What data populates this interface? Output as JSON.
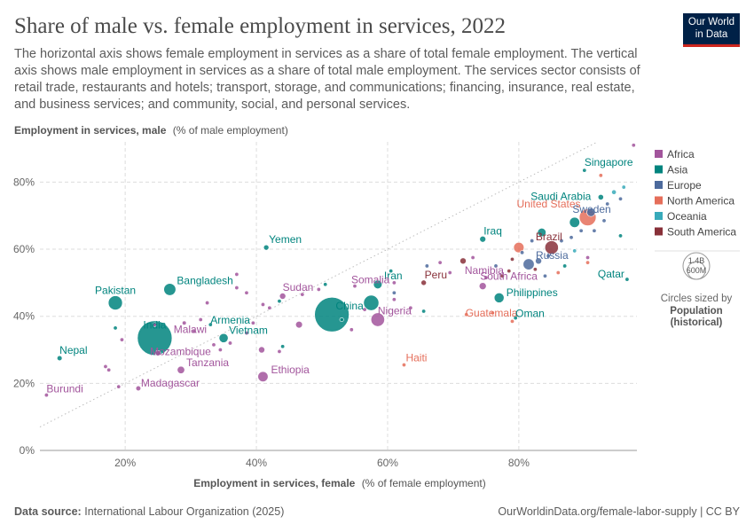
{
  "header": {
    "title": "Share of male vs. female employment in services, 2022",
    "subtitle": "The horizontal axis shows female employment in services as a share of total female employment. The vertical axis shows male employment in services as a share of total male employment. The services sector consists of retail trade, restaurants and hotels; transport, storage, and communications; financing, insurance, real estate, and business services; and community, social, and personal services.",
    "logo_line1": "Our World",
    "logo_line2": "in Data"
  },
  "footer": {
    "source_label": "Data source:",
    "source_text": "International Labour Organization (2025)",
    "url": "OurWorldinData.org/female-labor-supply | CC BY"
  },
  "colors": {
    "Africa": "#a2559c",
    "Asia": "#00847e",
    "Europe": "#4c6a9c",
    "North America": "#e56e5a",
    "Oceania": "#38aaba",
    "South America": "#883039"
  },
  "legend": {
    "size_top": "1.4B",
    "size_bottom": "600M",
    "size_caption": "Circles sized by",
    "size_var1": "Population",
    "size_var2": "(historical)"
  },
  "chart_data": {
    "type": "scatter",
    "title": "Share of male vs. female employment in services, 2022",
    "xlabel_bold": "Employment in services, female",
    "xlabel_rest": "(% of female employment)",
    "ylabel_bold": "Employment in services, male",
    "ylabel_rest": "(% of male employment)",
    "xlim": [
      7,
      98
    ],
    "ylim": [
      0,
      92
    ],
    "x_ticks": [
      20,
      40,
      60,
      80
    ],
    "x_tick_labels": [
      "20%",
      "40%",
      "60%",
      "80%"
    ],
    "y_ticks": [
      0,
      20,
      40,
      60,
      80
    ],
    "y_tick_labels": [
      "0%",
      "20%",
      "40%",
      "60%",
      "80%"
    ],
    "grid": true,
    "reference_line": "y = x",
    "legend_entries": [
      "Africa",
      "Asia",
      "Europe",
      "North America",
      "Oceania",
      "South America"
    ],
    "points": [
      {
        "x": 24.5,
        "y": 33.5,
        "pop": 1420,
        "region": "Asia",
        "label": "India"
      },
      {
        "x": 51.5,
        "y": 40.5,
        "pop": 1410,
        "region": "Asia",
        "label": "China"
      },
      {
        "x": 90.5,
        "y": 69.5,
        "pop": 333,
        "region": "North America",
        "label": "United States"
      },
      {
        "x": 57.5,
        "y": 44.0,
        "pop": 275,
        "region": "Asia",
        "label": ""
      },
      {
        "x": 18.5,
        "y": 44.0,
        "pop": 236,
        "region": "Asia",
        "label": "Pakistan"
      },
      {
        "x": 58.5,
        "y": 39.0,
        "pop": 218,
        "region": "Africa",
        "label": "Nigeria"
      },
      {
        "x": 85.0,
        "y": 60.5,
        "pop": 215,
        "region": "South America",
        "label": "Brazil"
      },
      {
        "x": 26.8,
        "y": 48.0,
        "pop": 171,
        "region": "Asia",
        "label": "Bangladesh"
      },
      {
        "x": 81.5,
        "y": 55.5,
        "pop": 144,
        "region": "Europe",
        "label": "Russia"
      },
      {
        "x": 80.0,
        "y": 60.5,
        "pop": 128,
        "region": "North America",
        "label": ""
      },
      {
        "x": 41.0,
        "y": 22.0,
        "pop": 123,
        "region": "Africa",
        "label": "Ethiopia"
      },
      {
        "x": 88.5,
        "y": 68.0,
        "pop": 124,
        "region": "Asia",
        "label": ""
      },
      {
        "x": 77.0,
        "y": 45.5,
        "pop": 115,
        "region": "Asia",
        "label": "Philippines"
      },
      {
        "x": 35.0,
        "y": 33.5,
        "pop": 98,
        "region": "Asia",
        "label": "Vietnam"
      },
      {
        "x": 58.5,
        "y": 49.5,
        "pop": 88,
        "region": "Asia",
        "label": "Iran"
      },
      {
        "x": 83.5,
        "y": 65.0,
        "pop": 85,
        "region": "Asia",
        "label": ""
      },
      {
        "x": 91.0,
        "y": 71.0,
        "pop": 84,
        "region": "Europe",
        "label": ""
      },
      {
        "x": 28.5,
        "y": 24.0,
        "pop": 65,
        "region": "Africa",
        "label": "Tanzania"
      },
      {
        "x": 74.5,
        "y": 49.0,
        "pop": 60,
        "region": "Africa",
        "label": "South Africa"
      },
      {
        "x": 46.5,
        "y": 37.5,
        "pop": 55,
        "region": "Africa",
        "label": ""
      },
      {
        "x": 25.0,
        "y": 29.0,
        "pop": 35,
        "region": "Africa",
        "label": "Mozambique"
      },
      {
        "x": 40.8,
        "y": 30.0,
        "pop": 47,
        "region": "Africa",
        "label": ""
      },
      {
        "x": 83.0,
        "y": 56.5,
        "pop": 47,
        "region": "Europe",
        "label": ""
      },
      {
        "x": 71.5,
        "y": 56.5,
        "pop": 46,
        "region": "South America",
        "label": ""
      },
      {
        "x": 44.0,
        "y": 46.0,
        "pop": 46,
        "region": "Africa",
        "label": "Sudan"
      },
      {
        "x": 74.5,
        "y": 63.0,
        "pop": 44,
        "region": "Asia",
        "label": "Iraq"
      },
      {
        "x": 41.5,
        "y": 60.5,
        "pop": 33,
        "region": "Asia",
        "label": "Yemen"
      },
      {
        "x": 55.0,
        "y": 49.0,
        "pop": 17,
        "region": "Africa",
        "label": "Somalia"
      },
      {
        "x": 29.0,
        "y": 38.0,
        "pop": 20,
        "region": "Africa",
        "label": "Malawi"
      },
      {
        "x": 22.0,
        "y": 18.5,
        "pop": 29,
        "region": "Africa",
        "label": "Madagascar"
      },
      {
        "x": 8.0,
        "y": 16.5,
        "pop": 13,
        "region": "Africa",
        "label": "Burundi"
      },
      {
        "x": 10.0,
        "y": 27.5,
        "pop": 30,
        "region": "Asia",
        "label": "Nepal"
      },
      {
        "x": 33.0,
        "y": 37.5,
        "pop": 3,
        "region": "Asia",
        "label": "Armenia"
      },
      {
        "x": 62.5,
        "y": 25.5,
        "pop": 11,
        "region": "North America",
        "label": "Haiti"
      },
      {
        "x": 72.0,
        "y": 40.5,
        "pop": 17,
        "region": "North America",
        "label": "Guatemala"
      },
      {
        "x": 65.5,
        "y": 50.0,
        "pop": 34,
        "region": "South America",
        "label": "Peru"
      },
      {
        "x": 75.0,
        "y": 51.5,
        "pop": 3,
        "region": "Africa",
        "label": "Namibia"
      },
      {
        "x": 79.5,
        "y": 39.5,
        "pop": 5,
        "region": "Asia",
        "label": "Oman"
      },
      {
        "x": 96.5,
        "y": 51.0,
        "pop": 3,
        "region": "Asia",
        "label": "Qatar"
      },
      {
        "x": 90.0,
        "y": 83.5,
        "pop": 6,
        "region": "Asia",
        "label": "Singapore"
      },
      {
        "x": 92.5,
        "y": 75.5,
        "pop": 36,
        "region": "Asia",
        "label": "Saudi Arabia"
      },
      {
        "x": 93.5,
        "y": 73.5,
        "pop": 10,
        "region": "Europe",
        "label": "Sweden"
      },
      {
        "x": 97.5,
        "y": 91.0,
        "pop": 2,
        "region": "Africa",
        "label": ""
      },
      {
        "x": 92.5,
        "y": 82.0,
        "pop": 4,
        "region": "North America",
        "label": ""
      },
      {
        "x": 96.0,
        "y": 78.5,
        "pop": 5,
        "region": "Oceania",
        "label": ""
      },
      {
        "x": 94.5,
        "y": 77.0,
        "pop": 26,
        "region": "Oceania",
        "label": ""
      },
      {
        "x": 95.5,
        "y": 75.0,
        "pop": 5,
        "region": "Europe",
        "label": ""
      },
      {
        "x": 89.5,
        "y": 65.5,
        "pop": 11,
        "region": "Europe",
        "label": ""
      },
      {
        "x": 88.0,
        "y": 63.5,
        "pop": 9,
        "region": "Europe",
        "label": ""
      },
      {
        "x": 90.5,
        "y": 57.5,
        "pop": 5,
        "region": "Africa",
        "label": ""
      },
      {
        "x": 90.5,
        "y": 56.0,
        "pop": 3,
        "region": "North America",
        "label": ""
      },
      {
        "x": 86.5,
        "y": 62.5,
        "pop": 6,
        "region": "Europe",
        "label": ""
      },
      {
        "x": 87.0,
        "y": 55.0,
        "pop": 9,
        "region": "Asia",
        "label": ""
      },
      {
        "x": 84.5,
        "y": 58.0,
        "pop": 19,
        "region": "Europe",
        "label": ""
      },
      {
        "x": 82.0,
        "y": 62.5,
        "pop": 10,
        "region": "Europe",
        "label": ""
      },
      {
        "x": 80.5,
        "y": 59.0,
        "pop": 8,
        "region": "Europe",
        "label": ""
      },
      {
        "x": 79.0,
        "y": 57.0,
        "pop": 5,
        "region": "South America",
        "label": ""
      },
      {
        "x": 78.5,
        "y": 53.5,
        "pop": 7,
        "region": "South America",
        "label": ""
      },
      {
        "x": 76.5,
        "y": 55.0,
        "pop": 4,
        "region": "Europe",
        "label": ""
      },
      {
        "x": 77.5,
        "y": 52.0,
        "pop": 6,
        "region": "South America",
        "label": ""
      },
      {
        "x": 73.0,
        "y": 57.5,
        "pop": 3,
        "region": "Africa",
        "label": ""
      },
      {
        "x": 68.0,
        "y": 56.0,
        "pop": 5,
        "region": "Africa",
        "label": ""
      },
      {
        "x": 66.0,
        "y": 55.0,
        "pop": 4,
        "region": "Europe",
        "label": ""
      },
      {
        "x": 61.0,
        "y": 50.0,
        "pop": 10,
        "region": "Africa",
        "label": ""
      },
      {
        "x": 61.0,
        "y": 47.0,
        "pop": 4,
        "region": "Europe",
        "label": ""
      },
      {
        "x": 61.0,
        "y": 45.0,
        "pop": 5,
        "region": "Africa",
        "label": ""
      },
      {
        "x": 60.5,
        "y": 53.5,
        "pop": 5,
        "region": "Asia",
        "label": ""
      },
      {
        "x": 63.5,
        "y": 42.5,
        "pop": 9,
        "region": "Africa",
        "label": ""
      },
      {
        "x": 65.5,
        "y": 41.5,
        "pop": 12,
        "region": "Asia",
        "label": ""
      },
      {
        "x": 56.5,
        "y": 42.0,
        "pop": 5,
        "region": "Africa",
        "label": ""
      },
      {
        "x": 54.5,
        "y": 36.0,
        "pop": 8,
        "region": "Africa",
        "label": ""
      },
      {
        "x": 53.0,
        "y": 39.0,
        "pop": 16,
        "region": "Asia",
        "label": ""
      },
      {
        "x": 49.5,
        "y": 48.0,
        "pop": 5,
        "region": "Africa",
        "label": ""
      },
      {
        "x": 50.5,
        "y": 49.5,
        "pop": 4,
        "region": "Asia",
        "label": ""
      },
      {
        "x": 47.0,
        "y": 46.5,
        "pop": 3,
        "region": "Africa",
        "label": ""
      },
      {
        "x": 43.5,
        "y": 44.5,
        "pop": 2,
        "region": "Asia",
        "label": ""
      },
      {
        "x": 42.0,
        "y": 42.5,
        "pop": 4,
        "region": "Africa",
        "label": ""
      },
      {
        "x": 41.0,
        "y": 43.5,
        "pop": 3,
        "region": "Africa",
        "label": ""
      },
      {
        "x": 44.0,
        "y": 31.0,
        "pop": 18,
        "region": "Asia",
        "label": ""
      },
      {
        "x": 43.5,
        "y": 29.5,
        "pop": 2,
        "region": "Africa",
        "label": ""
      },
      {
        "x": 38.5,
        "y": 47.0,
        "pop": 13,
        "region": "Africa",
        "label": ""
      },
      {
        "x": 37.0,
        "y": 48.5,
        "pop": 6,
        "region": "Africa",
        "label": ""
      },
      {
        "x": 37.0,
        "y": 52.5,
        "pop": 4,
        "region": "Africa",
        "label": ""
      },
      {
        "x": 39.5,
        "y": 38.0,
        "pop": 2,
        "region": "Africa",
        "label": ""
      },
      {
        "x": 38.5,
        "y": 35.0,
        "pop": 7,
        "region": "Africa",
        "label": ""
      },
      {
        "x": 36.0,
        "y": 32.0,
        "pop": 5,
        "region": "Africa",
        "label": ""
      },
      {
        "x": 34.5,
        "y": 30.0,
        "pop": 10,
        "region": "Africa",
        "label": ""
      },
      {
        "x": 32.5,
        "y": 44.0,
        "pop": 3,
        "region": "Africa",
        "label": ""
      },
      {
        "x": 31.5,
        "y": 39.0,
        "pop": 4,
        "region": "Africa",
        "label": ""
      },
      {
        "x": 33.5,
        "y": 31.5,
        "pop": 4,
        "region": "Africa",
        "label": ""
      },
      {
        "x": 30.5,
        "y": 35.5,
        "pop": 6,
        "region": "Africa",
        "label": ""
      },
      {
        "x": 24.5,
        "y": 37.5,
        "pop": 4,
        "region": "Africa",
        "label": ""
      },
      {
        "x": 19.5,
        "y": 33.0,
        "pop": 3,
        "region": "Africa",
        "label": ""
      },
      {
        "x": 18.5,
        "y": 36.5,
        "pop": 6,
        "region": "Asia",
        "label": ""
      },
      {
        "x": 17.0,
        "y": 25.0,
        "pop": 8,
        "region": "Africa",
        "label": ""
      },
      {
        "x": 17.5,
        "y": 24.0,
        "pop": 5,
        "region": "Africa",
        "label": ""
      },
      {
        "x": 19.0,
        "y": 19.0,
        "pop": 4,
        "region": "Africa",
        "label": ""
      },
      {
        "x": 69.5,
        "y": 53.0,
        "pop": 7,
        "region": "Africa",
        "label": ""
      },
      {
        "x": 86.0,
        "y": 53.0,
        "pop": 3,
        "region": "North America",
        "label": ""
      },
      {
        "x": 88.5,
        "y": 59.5,
        "pop": 3,
        "region": "Oceania",
        "label": ""
      },
      {
        "x": 91.5,
        "y": 65.5,
        "pop": 5,
        "region": "Europe",
        "label": ""
      },
      {
        "x": 93.0,
        "y": 68.5,
        "pop": 5,
        "region": "Europe",
        "label": ""
      },
      {
        "x": 95.5,
        "y": 64.0,
        "pop": 5,
        "region": "Asia",
        "label": ""
      },
      {
        "x": 76.0,
        "y": 41.0,
        "pop": 3,
        "region": "North America",
        "label": ""
      },
      {
        "x": 79.0,
        "y": 38.5,
        "pop": 4,
        "region": "North America",
        "label": ""
      },
      {
        "x": 84.0,
        "y": 52.0,
        "pop": 4,
        "region": "Europe",
        "label": ""
      },
      {
        "x": 82.5,
        "y": 54.0,
        "pop": 5,
        "region": "South America",
        "label": ""
      }
    ]
  }
}
